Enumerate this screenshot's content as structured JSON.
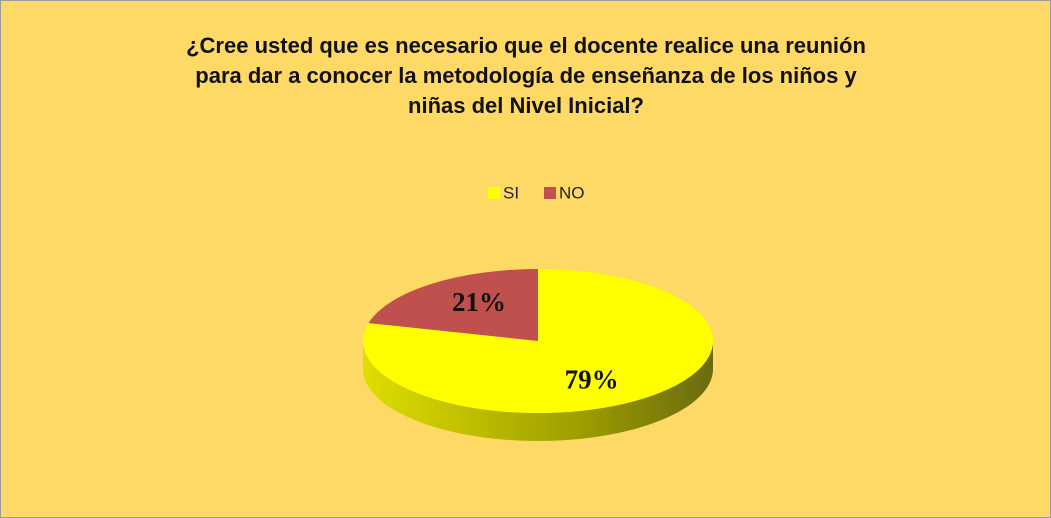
{
  "chart_data": {
    "type": "pie",
    "title": "¿Cree usted que es necesario que el docente realice una reunión para dar a conocer la metodología de enseñanza de los niños y niñas del Nivel Inicial?",
    "categories": [
      "SI",
      "NO"
    ],
    "values": [
      79,
      21
    ],
    "value_labels": [
      "79%",
      "21%"
    ],
    "colors": [
      "#ffff00",
      "#c0504d"
    ],
    "legend": "top"
  }
}
